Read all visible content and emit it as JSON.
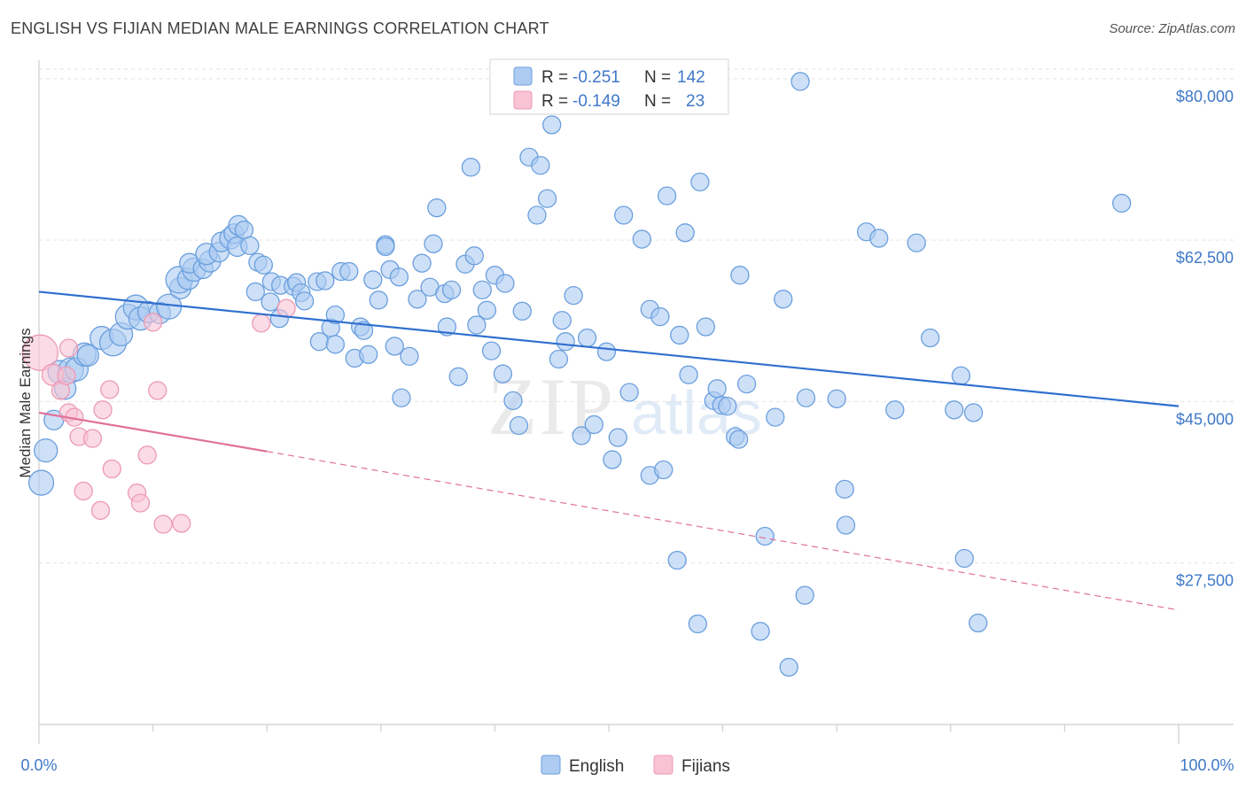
{
  "header": {
    "title": "ENGLISH VS FIJIAN MEDIAN MALE EARNINGS CORRELATION CHART",
    "source": "Source: ZipAtlas.com"
  },
  "legend": {
    "rows": [
      {
        "r_label": "R =",
        "r_value": "-0.251",
        "n_label": "N =",
        "n_value": "142"
      },
      {
        "r_label": "R =",
        "r_value": "-0.149",
        "n_label": "N =",
        "n_value": "23"
      }
    ]
  },
  "bottom_legend": [
    "English",
    "Fijians"
  ],
  "watermark": {
    "zip": "ZIP",
    "atlas": "atlas"
  },
  "colors": {
    "english_fill": "#aecbf2",
    "english_stroke": "#6a9fde",
    "english_line": "#2f6fcf",
    "fijian_fill": "#f8c3d3",
    "fijian_stroke": "#ec9ab4",
    "fijian_line": "#e0709a",
    "axis_text": "#3f78c8",
    "grid": "#e3e3e3"
  },
  "chart_data": {
    "type": "scatter",
    "title": "ENGLISH VS FIJIAN MEDIAN MALE EARNINGS CORRELATION CHART",
    "xlabel": "",
    "ylabel": "Median Male Earnings",
    "xlim": [
      0,
      100
    ],
    "ylim": [
      10000,
      82000
    ],
    "x_tick_labels": [
      "0.0%",
      "100.0%"
    ],
    "y_ticks": [
      {
        "value": 80000,
        "label": "$80,000"
      },
      {
        "value": 62500,
        "label": "$62,500"
      },
      {
        "value": 45000,
        "label": "$45,000"
      },
      {
        "value": 27500,
        "label": "$27,500"
      }
    ],
    "series": [
      {
        "name": "English",
        "r": -0.251,
        "n": 142,
        "trend": {
          "x0": 0,
          "y0": 56900,
          "x1": 100,
          "y1": 44500
        },
        "points": [
          [
            0.2,
            36200,
            14
          ],
          [
            0.6,
            39700,
            13
          ],
          [
            1.3,
            43000,
            11
          ],
          [
            1.8,
            48200,
            13
          ],
          [
            2.3,
            46400,
            12
          ],
          [
            2.8,
            48400,
            14
          ],
          [
            3.3,
            48500,
            13
          ],
          [
            4.0,
            50100,
            13
          ],
          [
            4.3,
            50000,
            12
          ],
          [
            5.5,
            51900,
            13
          ],
          [
            6.5,
            51400,
            15
          ],
          [
            7.2,
            52300,
            13
          ],
          [
            7.8,
            54200,
            14
          ],
          [
            8.5,
            55200,
            14
          ],
          [
            8.9,
            54000,
            13
          ],
          [
            9.6,
            54700,
            12
          ],
          [
            10.6,
            54600,
            12
          ],
          [
            11.4,
            55300,
            14
          ],
          [
            12.4,
            57300,
            12
          ],
          [
            12.3,
            58200,
            15
          ],
          [
            13.1,
            58300,
            12
          ],
          [
            13.6,
            59300,
            13
          ],
          [
            13.2,
            60000,
            11
          ],
          [
            14.4,
            59400,
            11
          ],
          [
            15.0,
            60200,
            12
          ],
          [
            14.7,
            61000,
            12
          ],
          [
            15.8,
            61200,
            11
          ],
          [
            16.0,
            62300,
            11
          ],
          [
            16.8,
            62700,
            12
          ],
          [
            17.1,
            63200,
            11
          ],
          [
            17.5,
            64100,
            11
          ],
          [
            17.4,
            61800,
            11
          ],
          [
            18.0,
            63600,
            10
          ],
          [
            18.5,
            61900,
            10
          ],
          [
            19.0,
            56900,
            10
          ],
          [
            19.2,
            60100,
            10
          ],
          [
            19.7,
            59800,
            10
          ],
          [
            20.3,
            55800,
            10
          ],
          [
            20.4,
            58000,
            10
          ],
          [
            21.1,
            54000,
            10
          ],
          [
            21.2,
            57600,
            10
          ],
          [
            22.3,
            57500,
            10
          ],
          [
            22.6,
            57900,
            10
          ],
          [
            23.0,
            56800,
            10
          ],
          [
            23.3,
            55900,
            10
          ],
          [
            24.4,
            58000,
            10
          ],
          [
            24.6,
            51500,
            10
          ],
          [
            25.1,
            58100,
            10
          ],
          [
            25.6,
            53000,
            10
          ],
          [
            26.0,
            51200,
            10
          ],
          [
            26.0,
            54400,
            10
          ],
          [
            26.5,
            59100,
            10
          ],
          [
            27.2,
            59100,
            10
          ],
          [
            27.7,
            49700,
            10
          ],
          [
            28.2,
            53100,
            10
          ],
          [
            28.5,
            52700,
            10
          ],
          [
            28.9,
            50100,
            10
          ],
          [
            29.3,
            58200,
            10
          ],
          [
            29.8,
            56000,
            10
          ],
          [
            30.4,
            62000,
            10
          ],
          [
            30.4,
            61800,
            10
          ],
          [
            30.8,
            59300,
            10
          ],
          [
            31.2,
            51000,
            10
          ],
          [
            31.6,
            58500,
            10
          ],
          [
            31.8,
            45400,
            10
          ],
          [
            32.5,
            49900,
            10
          ],
          [
            33.2,
            56100,
            10
          ],
          [
            33.6,
            60000,
            10
          ],
          [
            34.3,
            57400,
            10
          ],
          [
            34.6,
            62100,
            10
          ],
          [
            34.9,
            66000,
            10
          ],
          [
            35.6,
            56700,
            10
          ],
          [
            35.8,
            53100,
            10
          ],
          [
            36.2,
            57100,
            10
          ],
          [
            36.8,
            47700,
            10
          ],
          [
            37.4,
            59900,
            10
          ],
          [
            37.9,
            70400,
            10
          ],
          [
            38.2,
            60800,
            10
          ],
          [
            38.4,
            53300,
            10
          ],
          [
            38.9,
            57100,
            10
          ],
          [
            39.3,
            54900,
            10
          ],
          [
            39.7,
            50500,
            10
          ],
          [
            40.0,
            58700,
            10
          ],
          [
            40.7,
            48000,
            10
          ],
          [
            40.9,
            57800,
            10
          ],
          [
            41.6,
            45100,
            10
          ],
          [
            42.1,
            42400,
            10
          ],
          [
            42.4,
            54800,
            10
          ],
          [
            43.0,
            71500,
            10
          ],
          [
            43.7,
            65200,
            10
          ],
          [
            44.0,
            70600,
            10
          ],
          [
            44.6,
            67000,
            10
          ],
          [
            45.0,
            75000,
            10
          ],
          [
            45.6,
            49600,
            10
          ],
          [
            45.9,
            53800,
            10
          ],
          [
            46.2,
            51500,
            10
          ],
          [
            46.9,
            56500,
            10
          ],
          [
            47.6,
            41300,
            10
          ],
          [
            48.1,
            51900,
            10
          ],
          [
            48.7,
            42500,
            10
          ],
          [
            49.8,
            50400,
            10
          ],
          [
            50.3,
            38700,
            10
          ],
          [
            50.8,
            41100,
            10
          ],
          [
            51.3,
            65200,
            10
          ],
          [
            51.8,
            46000,
            10
          ],
          [
            52.9,
            62600,
            10
          ],
          [
            53.6,
            55000,
            10
          ],
          [
            53.6,
            37000,
            10
          ],
          [
            54.5,
            54200,
            10
          ],
          [
            54.8,
            37600,
            10
          ],
          [
            55.1,
            67300,
            10
          ],
          [
            56.0,
            27800,
            10
          ],
          [
            56.2,
            52200,
            10
          ],
          [
            56.7,
            63300,
            10
          ],
          [
            57.0,
            47900,
            10
          ],
          [
            57.8,
            20900,
            10
          ],
          [
            58.0,
            68800,
            10
          ],
          [
            58.5,
            53100,
            10
          ],
          [
            59.2,
            45100,
            10
          ],
          [
            59.5,
            46400,
            10
          ],
          [
            59.9,
            44600,
            10
          ],
          [
            60.4,
            44500,
            10
          ],
          [
            61.1,
            41200,
            10
          ],
          [
            61.4,
            40900,
            10
          ],
          [
            61.5,
            58700,
            10
          ],
          [
            62.1,
            46900,
            10
          ],
          [
            63.3,
            20100,
            10
          ],
          [
            63.7,
            30400,
            10
          ],
          [
            64.6,
            43300,
            10
          ],
          [
            65.3,
            56100,
            10
          ],
          [
            65.8,
            16200,
            10
          ],
          [
            66.8,
            79700,
            10
          ],
          [
            67.2,
            24000,
            10
          ],
          [
            67.3,
            45400,
            10
          ],
          [
            70.0,
            45300,
            10
          ],
          [
            70.7,
            35500,
            10
          ],
          [
            70.8,
            31600,
            10
          ],
          [
            72.6,
            63400,
            10
          ],
          [
            73.7,
            62700,
            10
          ],
          [
            75.1,
            44100,
            10
          ],
          [
            77.0,
            62200,
            10
          ],
          [
            78.2,
            51900,
            10
          ],
          [
            80.3,
            44100,
            10
          ],
          [
            80.9,
            47800,
            10
          ],
          [
            81.2,
            28000,
            10
          ],
          [
            82.0,
            43800,
            10
          ],
          [
            82.4,
            21000,
            10
          ],
          [
            95.0,
            66500,
            10
          ]
        ]
      },
      {
        "name": "Fijians",
        "r": -0.149,
        "n": 23,
        "trend": {
          "x0": 0,
          "y0": 43800,
          "x1": 20,
          "y1": 39600
        },
        "trend_dashed": {
          "x0": 20,
          "y0": 39600,
          "x1": 100,
          "y1": 22400
        },
        "points": [
          [
            0.1,
            50300,
            20
          ],
          [
            1.2,
            47900,
            12
          ],
          [
            1.9,
            46200,
            10
          ],
          [
            2.4,
            47800,
            10
          ],
          [
            2.6,
            50800,
            10
          ],
          [
            2.6,
            43800,
            10
          ],
          [
            3.1,
            43300,
            10
          ],
          [
            3.5,
            41200,
            10
          ],
          [
            3.9,
            35300,
            10
          ],
          [
            4.7,
            41000,
            10
          ],
          [
            5.4,
            33200,
            10
          ],
          [
            5.6,
            44100,
            10
          ],
          [
            6.2,
            46300,
            10
          ],
          [
            6.4,
            37700,
            10
          ],
          [
            8.6,
            35100,
            10
          ],
          [
            8.9,
            34000,
            10
          ],
          [
            9.5,
            39200,
            10
          ],
          [
            10.0,
            53600,
            10
          ],
          [
            10.4,
            46200,
            10
          ],
          [
            10.9,
            31700,
            10
          ],
          [
            12.5,
            31800,
            10
          ],
          [
            19.5,
            53500,
            10
          ],
          [
            21.7,
            55100,
            10
          ]
        ]
      }
    ]
  }
}
